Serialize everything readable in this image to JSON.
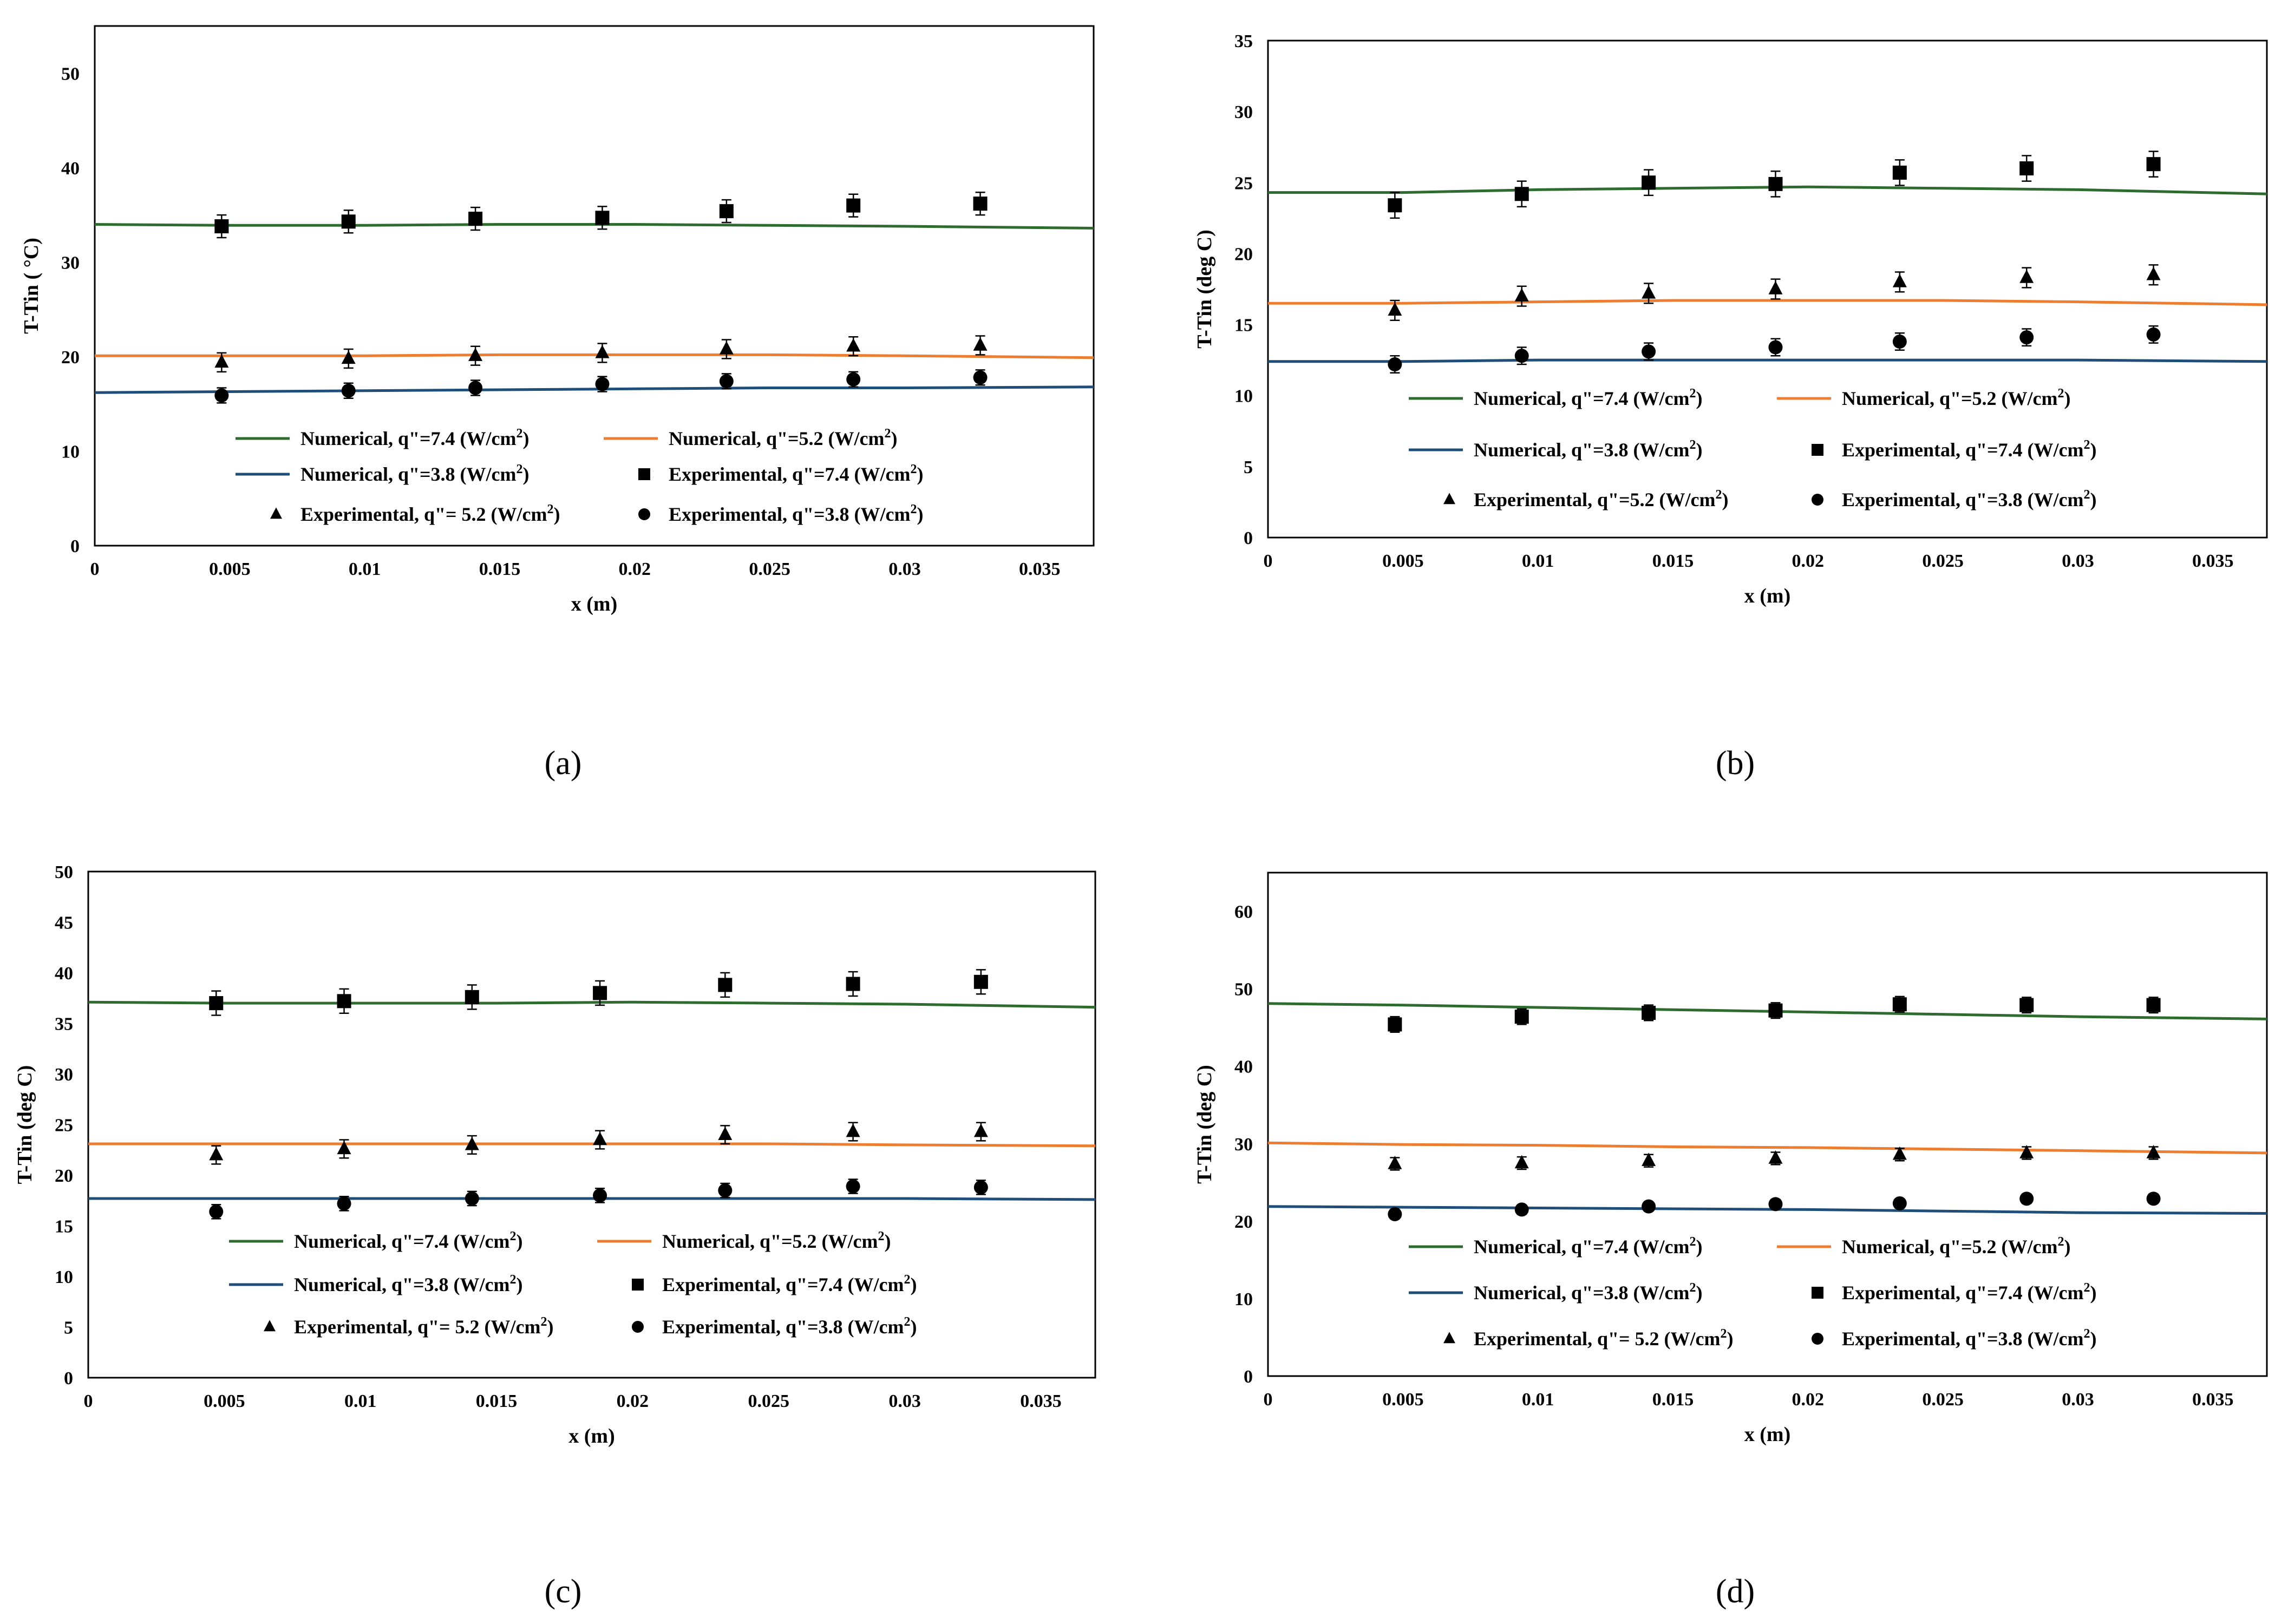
{
  "figure": {
    "colors": {
      "green": "#2e6b2e",
      "orange": "#ed7d31",
      "blue": "#1f4e79",
      "marker": "#000000"
    }
  },
  "chart_data": [
    {
      "panel": "a",
      "caption": "(a)",
      "type": "line",
      "xlabel": "x (m)",
      "ylabel": "T-Tin ( °C)",
      "xlim": [
        0,
        0.037
      ],
      "ylim": [
        0,
        55
      ],
      "xticks": [
        0,
        0.005,
        0.01,
        0.015,
        0.02,
        0.025,
        0.03,
        0.035
      ],
      "xtick_labels": [
        "0",
        "0.005",
        "0.01",
        "0.015",
        "0.02",
        "0.025",
        "0.03",
        "0.035"
      ],
      "yticks": [
        0,
        10,
        20,
        30,
        40,
        50
      ],
      "ytick_labels": [
        "0",
        "10",
        "20",
        "30",
        "40",
        "50"
      ],
      "numerical": [
        {
          "name": "Numerical, q\"=7.4",
          "unit": "(W/cm",
          "color": "green",
          "x": [
            0,
            0.005,
            0.01,
            0.015,
            0.02,
            0.025,
            0.03,
            0.037
          ],
          "y": [
            34.0,
            33.9,
            33.9,
            34.0,
            34.0,
            33.9,
            33.8,
            33.6
          ]
        },
        {
          "name": "Numerical, q\"=5.2",
          "unit": "(W/cm",
          "color": "orange",
          "x": [
            0,
            0.005,
            0.01,
            0.015,
            0.02,
            0.025,
            0.03,
            0.037
          ],
          "y": [
            20.1,
            20.1,
            20.1,
            20.2,
            20.2,
            20.2,
            20.1,
            19.9
          ]
        },
        {
          "name": "Numerical, q\"=3.8",
          "unit": "(W/cm",
          "color": "blue",
          "x": [
            0,
            0.005,
            0.01,
            0.015,
            0.02,
            0.025,
            0.03,
            0.037
          ],
          "y": [
            16.2,
            16.3,
            16.4,
            16.5,
            16.6,
            16.7,
            16.7,
            16.8
          ]
        }
      ],
      "experimental": [
        {
          "name": "Experimental, q\"=7.4",
          "unit": "(W/cm",
          "marker": "square",
          "x": [
            0.0047,
            0.0094,
            0.0141,
            0.0188,
            0.0234,
            0.0281,
            0.0328
          ],
          "y": [
            33.8,
            34.3,
            34.6,
            34.7,
            35.4,
            36.0,
            36.2
          ],
          "err": 1.2
        },
        {
          "name": "Experimental, q\"= 5.2",
          "unit": "(W/cm",
          "marker": "triangle",
          "x": [
            0.0047,
            0.0094,
            0.0141,
            0.0188,
            0.0234,
            0.0281,
            0.0328
          ],
          "y": [
            19.4,
            19.8,
            20.1,
            20.4,
            20.8,
            21.1,
            21.2
          ],
          "err": 1.0
        },
        {
          "name": "Experimental, q\"=3.8",
          "unit": "(W/cm",
          "marker": "circle",
          "x": [
            0.0047,
            0.0094,
            0.0141,
            0.0188,
            0.0234,
            0.0281,
            0.0328
          ],
          "y": [
            15.9,
            16.4,
            16.7,
            17.1,
            17.4,
            17.6,
            17.8
          ],
          "err": 0.8
        }
      ]
    },
    {
      "panel": "b",
      "caption": "(b)",
      "type": "line",
      "xlabel": "x (m)",
      "ylabel": "T-Tin (deg C)",
      "xlim": [
        0,
        0.037
      ],
      "ylim": [
        0,
        35
      ],
      "xticks": [
        0,
        0.005,
        0.01,
        0.015,
        0.02,
        0.025,
        0.03,
        0.035
      ],
      "xtick_labels": [
        "0",
        "0.005",
        "0.01",
        "0.015",
        "0.02",
        "0.025",
        "0.03",
        "0.035"
      ],
      "yticks": [
        0,
        5,
        10,
        15,
        20,
        25,
        30,
        35
      ],
      "ytick_labels": [
        "0",
        "5",
        "10",
        "15",
        "20",
        "25",
        "30",
        "35"
      ],
      "numerical": [
        {
          "name": "Numerical, q\"=7.4",
          "unit": "(W/cm",
          "color": "green",
          "x": [
            0,
            0.005,
            0.01,
            0.015,
            0.02,
            0.025,
            0.03,
            0.037
          ],
          "y": [
            24.3,
            24.3,
            24.5,
            24.6,
            24.7,
            24.6,
            24.5,
            24.2
          ]
        },
        {
          "name": "Numerical, q\"=5.2",
          "unit": "(W/cm",
          "color": "orange",
          "x": [
            0,
            0.005,
            0.01,
            0.015,
            0.02,
            0.025,
            0.03,
            0.037
          ],
          "y": [
            16.5,
            16.5,
            16.6,
            16.7,
            16.7,
            16.7,
            16.6,
            16.4
          ]
        },
        {
          "name": "Numerical, q\"=3.8",
          "unit": "(W/cm",
          "color": "blue",
          "x": [
            0,
            0.005,
            0.01,
            0.015,
            0.02,
            0.025,
            0.03,
            0.037
          ],
          "y": [
            12.4,
            12.4,
            12.5,
            12.5,
            12.5,
            12.5,
            12.5,
            12.4
          ]
        }
      ],
      "experimental": [
        {
          "name": "Experimental, q\"=7.4",
          "unit": "(W/cm",
          "marker": "square",
          "x": [
            0.0047,
            0.0094,
            0.0141,
            0.0188,
            0.0234,
            0.0281,
            0.0328
          ],
          "y": [
            23.4,
            24.2,
            25.0,
            24.9,
            25.7,
            26.0,
            26.3
          ],
          "err": 0.9
        },
        {
          "name": "Experimental, q\"=5.2",
          "unit": "(W/cm",
          "marker": "triangle",
          "x": [
            0.0047,
            0.0094,
            0.0141,
            0.0188,
            0.0234,
            0.0281,
            0.0328
          ],
          "y": [
            16.0,
            17.0,
            17.2,
            17.5,
            18.0,
            18.3,
            18.5
          ],
          "err": 0.7
        },
        {
          "name": "Experimental, q\"=3.8",
          "unit": "(W/cm",
          "marker": "circle",
          "x": [
            0.0047,
            0.0094,
            0.0141,
            0.0188,
            0.0234,
            0.0281,
            0.0328
          ],
          "y": [
            12.2,
            12.8,
            13.1,
            13.4,
            13.8,
            14.1,
            14.3
          ],
          "err": 0.6
        }
      ]
    },
    {
      "panel": "c",
      "caption": "(c)",
      "type": "line",
      "xlabel": "x (m)",
      "ylabel": "T-Tin (deg C)",
      "xlim": [
        0,
        0.037
      ],
      "ylim": [
        0,
        50
      ],
      "xticks": [
        0,
        0.005,
        0.01,
        0.015,
        0.02,
        0.025,
        0.03,
        0.035
      ],
      "xtick_labels": [
        "0",
        "0.005",
        "0.01",
        "0.015",
        "0.02",
        "0.025",
        "0.03",
        "0.035"
      ],
      "yticks": [
        0,
        5,
        10,
        15,
        20,
        25,
        30,
        35,
        40,
        45,
        50
      ],
      "ytick_labels": [
        "0",
        "5",
        "10",
        "15",
        "20",
        "25",
        "30",
        "35",
        "40",
        "45",
        "50"
      ],
      "numerical": [
        {
          "name": "Numerical, q\"=7.4",
          "unit": "(W/cm",
          "color": "green",
          "x": [
            0,
            0.005,
            0.01,
            0.015,
            0.02,
            0.025,
            0.03,
            0.037
          ],
          "y": [
            37.1,
            37.0,
            37.0,
            37.0,
            37.1,
            37.0,
            36.9,
            36.6
          ]
        },
        {
          "name": "Numerical, q\"=5.2",
          "unit": "(W/cm",
          "color": "orange",
          "x": [
            0,
            0.005,
            0.01,
            0.015,
            0.02,
            0.025,
            0.03,
            0.037
          ],
          "y": [
            23.1,
            23.1,
            23.1,
            23.1,
            23.1,
            23.1,
            23.0,
            22.9
          ]
        },
        {
          "name": "Numerical, q\"=3.8",
          "unit": "(W/cm",
          "color": "blue",
          "x": [
            0,
            0.005,
            0.01,
            0.015,
            0.02,
            0.025,
            0.03,
            0.037
          ],
          "y": [
            17.7,
            17.7,
            17.7,
            17.7,
            17.7,
            17.7,
            17.7,
            17.6
          ]
        }
      ],
      "experimental": [
        {
          "name": "Experimental, q\"=7.4",
          "unit": "(W/cm",
          "marker": "square",
          "x": [
            0.0047,
            0.0094,
            0.0141,
            0.0188,
            0.0234,
            0.0281,
            0.0328
          ],
          "y": [
            37.0,
            37.2,
            37.6,
            38.0,
            38.8,
            38.9,
            39.1
          ],
          "err": 1.2
        },
        {
          "name": "Experimental, q\"= 5.2",
          "unit": "(W/cm",
          "marker": "triangle",
          "x": [
            0.0047,
            0.0094,
            0.0141,
            0.0188,
            0.0234,
            0.0281,
            0.0328
          ],
          "y": [
            22.0,
            22.6,
            23.0,
            23.5,
            24.0,
            24.3,
            24.3
          ],
          "err": 0.9
        },
        {
          "name": "Experimental, q\"=3.8",
          "unit": "(W/cm",
          "marker": "circle",
          "x": [
            0.0047,
            0.0094,
            0.0141,
            0.0188,
            0.0234,
            0.0281,
            0.0328
          ],
          "y": [
            16.4,
            17.2,
            17.7,
            18.0,
            18.5,
            18.9,
            18.8
          ],
          "err": 0.7
        }
      ]
    },
    {
      "panel": "d",
      "caption": "(d)",
      "type": "line",
      "xlabel": "x (m)",
      "ylabel": "T-Tin (deg C)",
      "xlim": [
        0,
        0.037
      ],
      "ylim": [
        0,
        65
      ],
      "xticks": [
        0,
        0.005,
        0.01,
        0.015,
        0.02,
        0.025,
        0.03,
        0.035
      ],
      "xtick_labels": [
        "0",
        "0.005",
        "0.01",
        "0.015",
        "0.02",
        "0.025",
        "0.03",
        "0.035"
      ],
      "yticks": [
        0,
        10,
        20,
        30,
        40,
        50,
        60
      ],
      "ytick_labels": [
        "0",
        "10",
        "20",
        "30",
        "40",
        "50",
        "60"
      ],
      "numerical": [
        {
          "name": "Numerical, q\"=7.4",
          "unit": "(W/cm",
          "color": "green",
          "x": [
            0,
            0.005,
            0.01,
            0.015,
            0.02,
            0.025,
            0.03,
            0.037
          ],
          "y": [
            48.1,
            47.9,
            47.6,
            47.3,
            47.0,
            46.7,
            46.4,
            46.1
          ]
        },
        {
          "name": "Numerical, q\"=5.2",
          "unit": "(W/cm",
          "color": "orange",
          "x": [
            0,
            0.005,
            0.01,
            0.015,
            0.02,
            0.025,
            0.03,
            0.037
          ],
          "y": [
            30.1,
            29.9,
            29.8,
            29.6,
            29.5,
            29.3,
            29.1,
            28.8
          ]
        },
        {
          "name": "Numerical, q\"=3.8",
          "unit": "(W/cm",
          "color": "blue",
          "x": [
            0,
            0.005,
            0.01,
            0.015,
            0.02,
            0.025,
            0.03,
            0.037
          ],
          "y": [
            21.9,
            21.8,
            21.7,
            21.6,
            21.5,
            21.3,
            21.1,
            21.0
          ]
        }
      ],
      "experimental": [
        {
          "name": "Experimental, q\"=7.4",
          "unit": "(W/cm",
          "marker": "square",
          "x": [
            0.0047,
            0.0094,
            0.0141,
            0.0188,
            0.0234,
            0.0281,
            0.0328
          ],
          "y": [
            45.4,
            46.4,
            46.9,
            47.2,
            48.0,
            47.9,
            47.9
          ],
          "err": 1.0
        },
        {
          "name": "Experimental, q\"= 5.2",
          "unit": "(W/cm",
          "marker": "triangle",
          "x": [
            0.0047,
            0.0094,
            0.0141,
            0.0188,
            0.0234,
            0.0281,
            0.0328
          ],
          "y": [
            27.4,
            27.5,
            27.8,
            28.1,
            28.6,
            28.8,
            28.8
          ],
          "err": 0.8
        },
        {
          "name": "Experimental, q\"=3.8",
          "unit": "(W/cm",
          "marker": "circle",
          "x": [
            0.0047,
            0.0094,
            0.0141,
            0.0188,
            0.0234,
            0.0281,
            0.0328
          ],
          "y": [
            20.9,
            21.5,
            21.9,
            22.2,
            22.3,
            22.9,
            22.9
          ],
          "err": 0.6
        }
      ]
    }
  ]
}
